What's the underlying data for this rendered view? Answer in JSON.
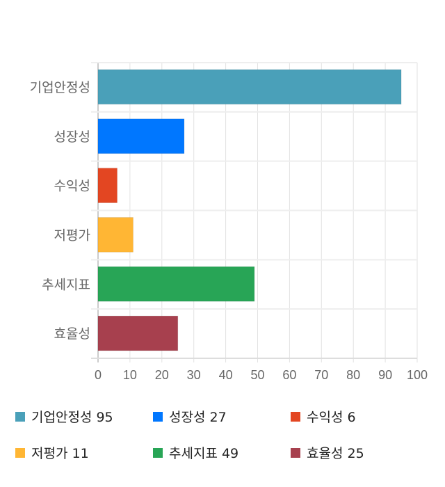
{
  "chart_data": {
    "type": "bar",
    "orientation": "horizontal",
    "categories": [
      "기업안정성",
      "성장성",
      "수익성",
      "저평가",
      "추세지표",
      "효율성"
    ],
    "values": [
      95,
      27,
      6,
      11,
      49,
      25
    ],
    "colors": [
      "#4aa0b9",
      "#0077ff",
      "#e34622",
      "#ffb634",
      "#28a556",
      "#a7404e"
    ],
    "xlim": [
      0,
      100
    ],
    "xticks": [
      0,
      10,
      20,
      30,
      40,
      50,
      60,
      70,
      80,
      90,
      100
    ],
    "grid": true,
    "legend_position": "bottom",
    "legend": [
      {
        "label": "기업안정성 95"
      },
      {
        "label": "성장성 27"
      },
      {
        "label": "수익성 6"
      },
      {
        "label": "저평가 11"
      },
      {
        "label": "추세지표 49"
      },
      {
        "label": "효율성 25"
      }
    ]
  }
}
